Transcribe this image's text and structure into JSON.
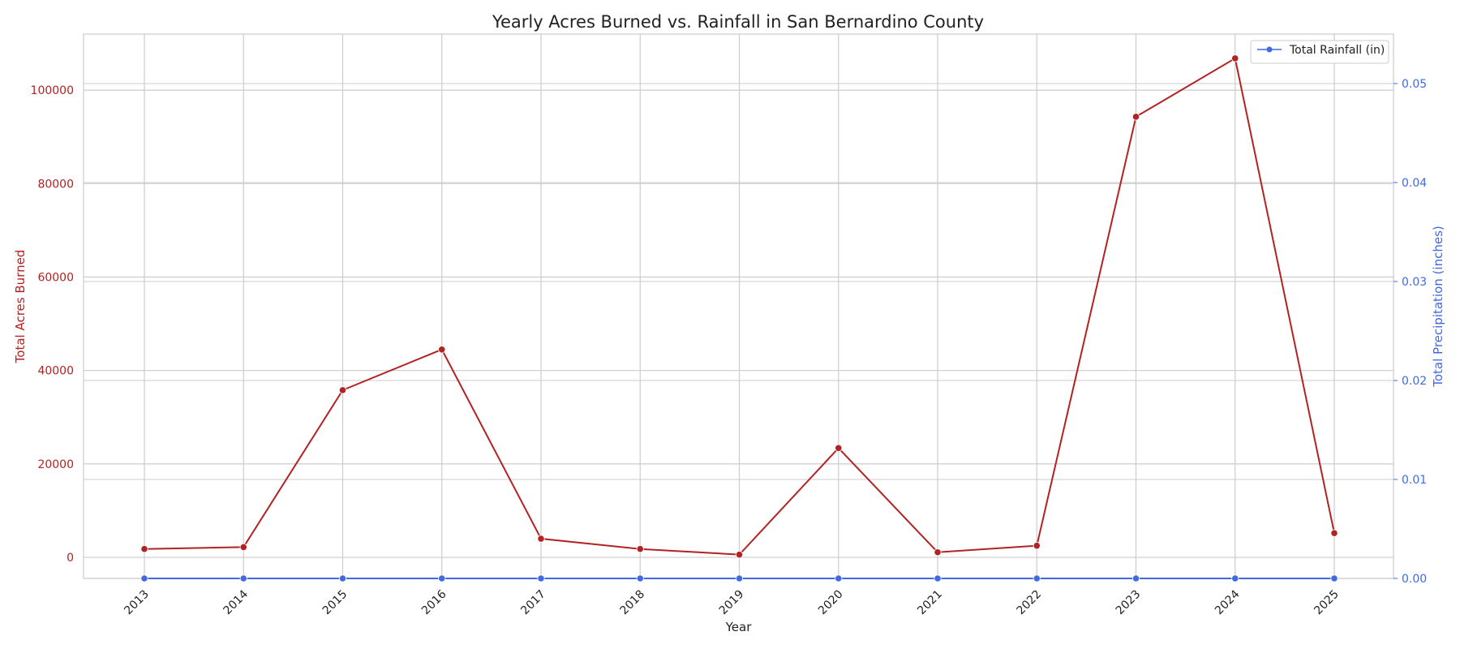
{
  "chart_data": {
    "type": "line",
    "title": "Yearly Acres Burned vs. Rainfall in San Bernardino County",
    "xlabel": "Year",
    "ylabel_left": "Total Acres Burned",
    "ylabel_right": "Total Precipitation (inches)",
    "x": [
      "2013",
      "2014",
      "2015",
      "2016",
      "2017",
      "2018",
      "2019",
      "2020",
      "2021",
      "2022",
      "2023",
      "2024",
      "2025"
    ],
    "ylim_left": [
      -4500,
      112000
    ],
    "ylim_right": [
      0,
      0.055
    ],
    "yticks_left": [
      "0",
      "20000",
      "40000",
      "60000",
      "80000",
      "100000"
    ],
    "yticks_right": [
      "0.00",
      "0.01",
      "0.02",
      "0.03",
      "0.04",
      "0.05"
    ],
    "grid": true,
    "legend_position": "top-right",
    "colors": {
      "acres": "#b22222",
      "rainfall": "#4169e1"
    },
    "series": [
      {
        "axis": "left",
        "values": [
          1800,
          2200,
          35800,
          44500,
          4000,
          1800,
          600,
          23400,
          1100,
          2500,
          94300,
          106800,
          5200
        ]
      },
      {
        "name": "Total Rainfall (in)",
        "axis": "right",
        "values": [
          0,
          0,
          0,
          0,
          0,
          0,
          0,
          0,
          0,
          0,
          0,
          0,
          0
        ]
      }
    ]
  }
}
